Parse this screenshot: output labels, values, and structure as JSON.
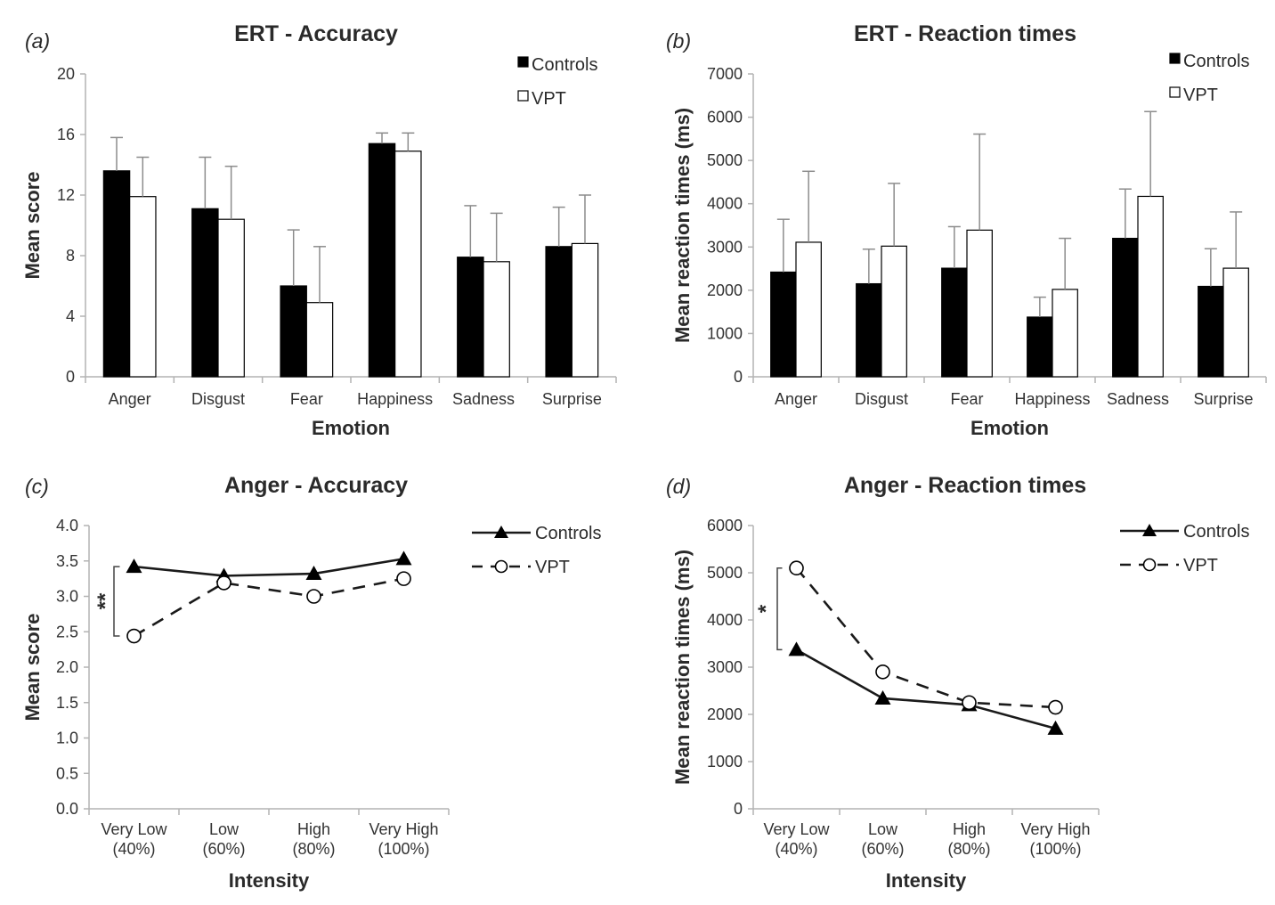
{
  "colors": {
    "controls_fill": "#000000",
    "vpt_fill": "#ffffff",
    "axis": "#b3b3b3",
    "error_bar": "#8c8c8c",
    "line": "#1a1a1a"
  },
  "chart_data": [
    {
      "panel_label": "(a)",
      "type": "bar",
      "title": "ERT - Accuracy",
      "xlabel": "Emotion",
      "ylabel": "Mean score",
      "ylim": [
        0,
        20
      ],
      "yticks": [
        "0",
        "4",
        "8",
        "12",
        "16",
        "20"
      ],
      "categories": [
        "Anger",
        "Disgust",
        "Fear",
        "Happiness",
        "Sadness",
        "Surprise"
      ],
      "series": [
        {
          "name": "Controls",
          "values": [
            13.6,
            11.1,
            6.0,
            15.4,
            7.9,
            8.6
          ],
          "errors": [
            2.2,
            3.4,
            3.7,
            0.7,
            3.4,
            2.6
          ]
        },
        {
          "name": "VPT",
          "values": [
            11.9,
            10.4,
            4.9,
            14.9,
            7.6,
            8.8
          ],
          "errors": [
            2.6,
            3.5,
            3.7,
            1.2,
            3.2,
            3.2
          ]
        }
      ],
      "grid": false,
      "legend": "top-right"
    },
    {
      "panel_label": "(b)",
      "type": "bar",
      "title": "ERT - Reaction times",
      "xlabel": "Emotion",
      "ylabel": "Mean reaction times (ms)",
      "ylim": [
        0,
        7000
      ],
      "yticks": [
        "0",
        "1000",
        "2000",
        "3000",
        "4000",
        "5000",
        "6000",
        "7000"
      ],
      "categories": [
        "Anger",
        "Disgust",
        "Fear",
        "Happiness",
        "Sadness",
        "Surprise"
      ],
      "series": [
        {
          "name": "Controls",
          "values": [
            2420,
            2150,
            2510,
            1380,
            3200,
            2090
          ],
          "errors": [
            1220,
            800,
            960,
            460,
            1140,
            870
          ]
        },
        {
          "name": "VPT",
          "values": [
            3110,
            3020,
            3390,
            2020,
            4170,
            2510
          ],
          "errors": [
            1640,
            1450,
            2220,
            1180,
            1960,
            1300
          ]
        }
      ],
      "grid": false,
      "legend": "top-right"
    },
    {
      "panel_label": "(c)",
      "type": "line",
      "title": "Anger - Accuracy",
      "xlabel": "Intensity",
      "ylabel": "Mean score",
      "ylim": [
        0,
        4
      ],
      "yticks": [
        "0.0",
        "0.5",
        "1.0",
        "1.5",
        "2.0",
        "2.5",
        "3.0",
        "3.5",
        "4.0"
      ],
      "categories": [
        [
          "Very Low",
          "(40%)"
        ],
        [
          "Low",
          "(60%)"
        ],
        [
          "High",
          "(80%)"
        ],
        [
          "Very High",
          "(100%)"
        ]
      ],
      "series": [
        {
          "name": "Controls",
          "values": [
            3.42,
            3.29,
            3.32,
            3.53
          ],
          "marker": "triangle",
          "dash": false
        },
        {
          "name": "VPT",
          "values": [
            2.44,
            3.19,
            3.0,
            3.25
          ],
          "marker": "circle",
          "dash": true
        }
      ],
      "significance": "**",
      "grid": false,
      "legend": "top-right"
    },
    {
      "panel_label": "(d)",
      "type": "line",
      "title": "Anger - Reaction times",
      "xlabel": "Intensity",
      "ylabel": "Mean reaction times (ms)",
      "ylim": [
        0,
        6000
      ],
      "yticks": [
        "0",
        "1000",
        "2000",
        "3000",
        "4000",
        "5000",
        "6000"
      ],
      "categories": [
        [
          "Very Low",
          "(40%)"
        ],
        [
          "Low",
          "(60%)"
        ],
        [
          "High",
          "(80%)"
        ],
        [
          "Very High",
          "(100%)"
        ]
      ],
      "series": [
        {
          "name": "Controls",
          "values": [
            3370,
            2340,
            2200,
            1700
          ],
          "marker": "triangle",
          "dash": false
        },
        {
          "name": "VPT",
          "values": [
            5100,
            2900,
            2250,
            2150
          ],
          "marker": "circle",
          "dash": true
        }
      ],
      "significance": "*",
      "grid": false,
      "legend": "top-right"
    }
  ]
}
